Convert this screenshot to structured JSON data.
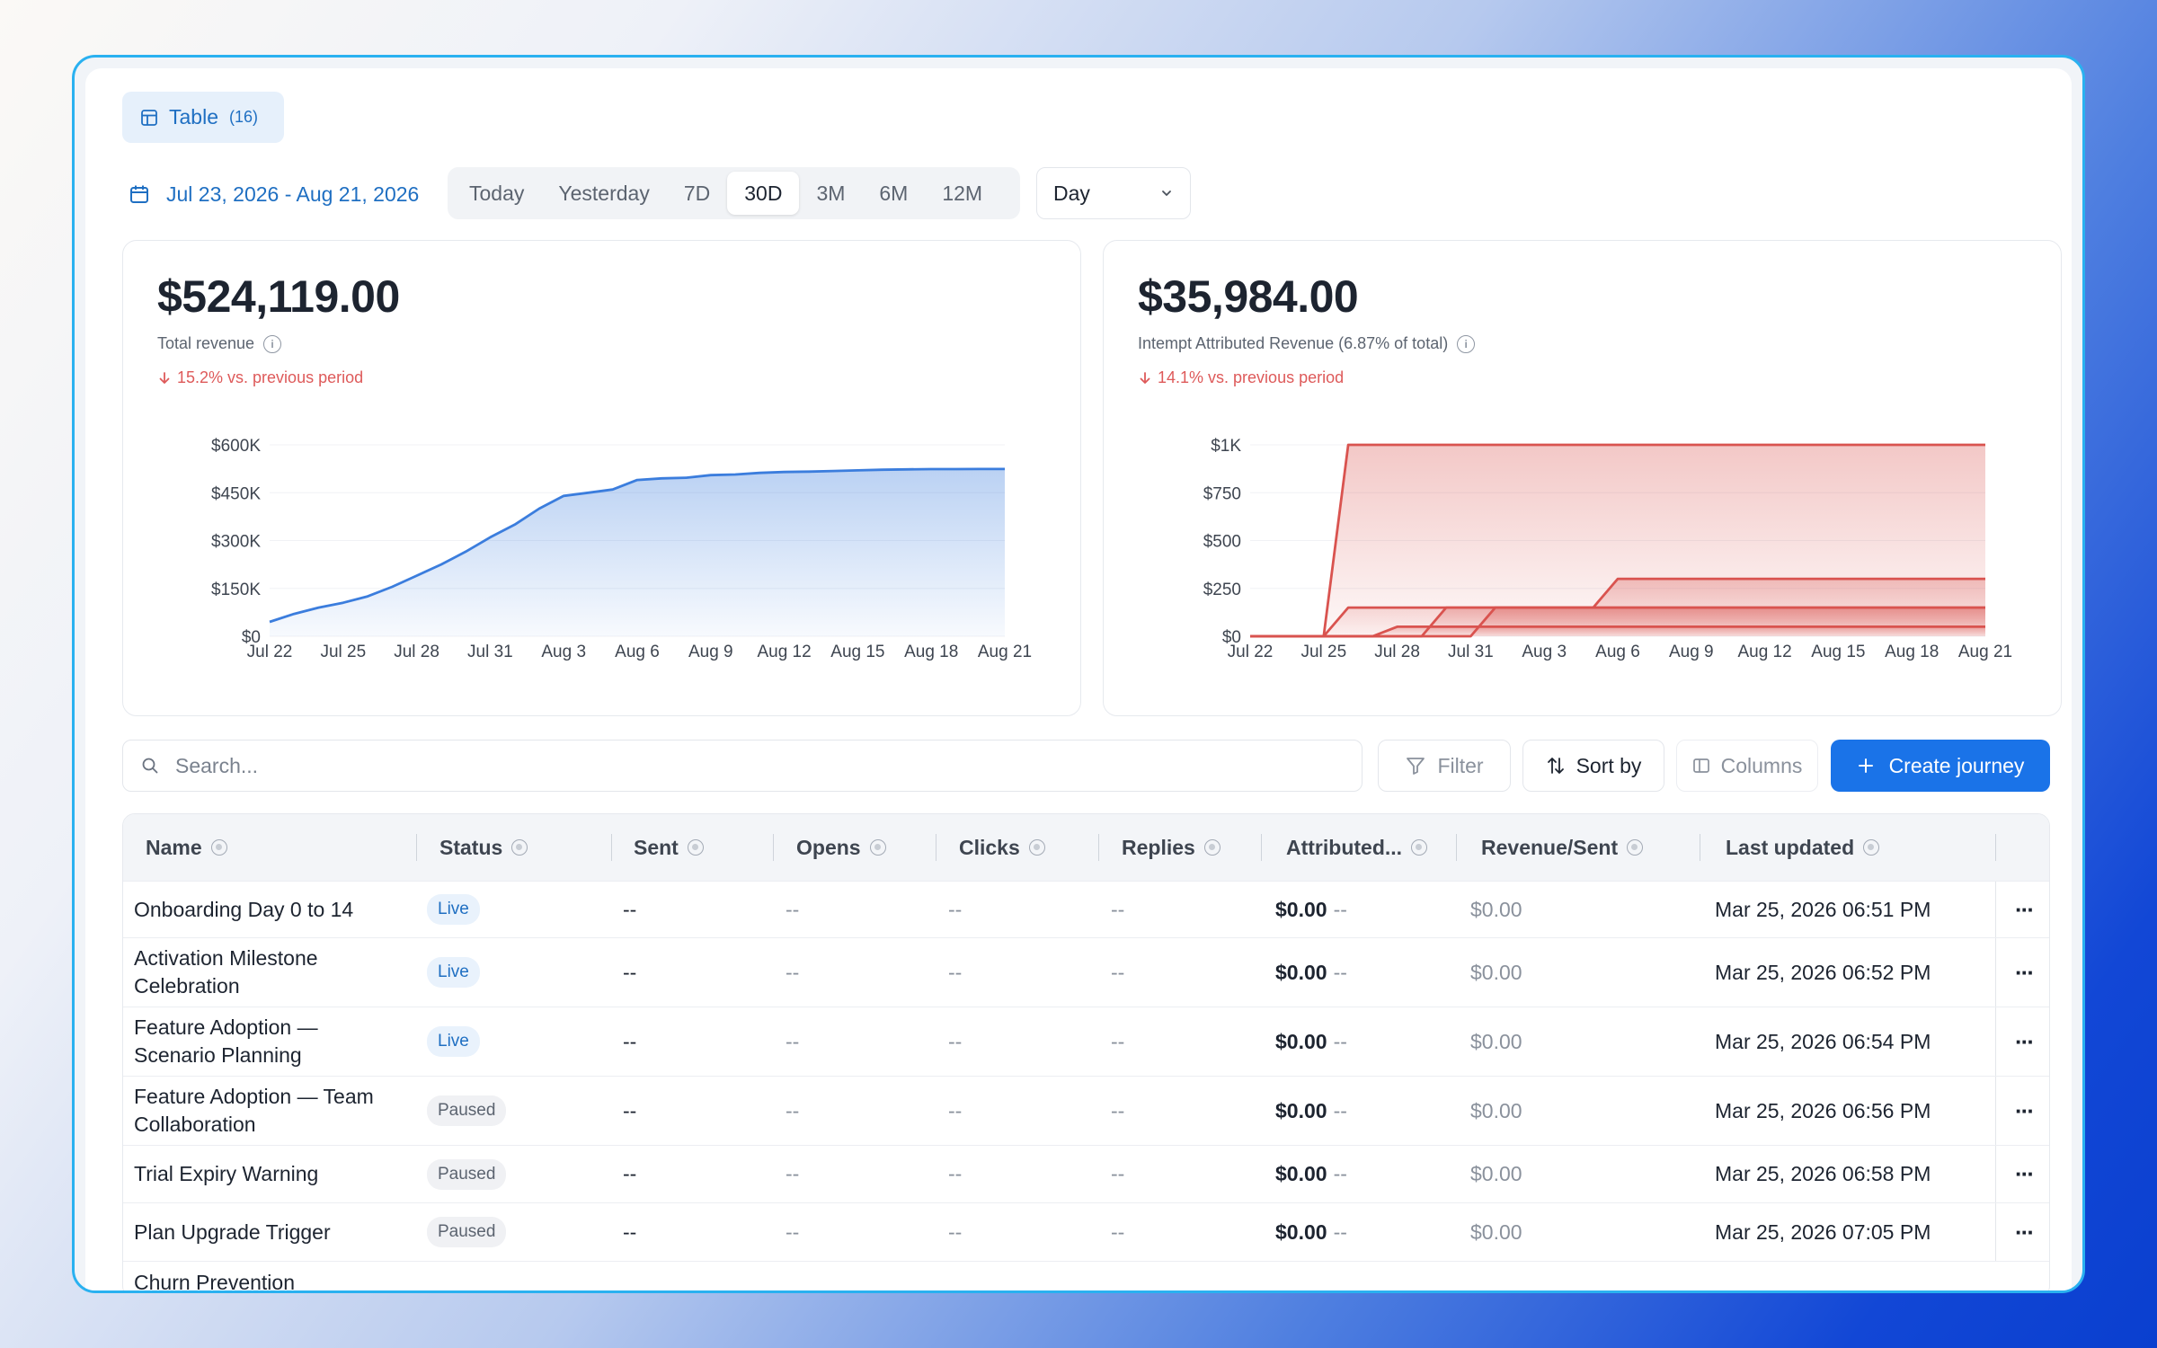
{
  "view_tab": {
    "label": "Table",
    "count": "(16)"
  },
  "date_range": "Jul 23, 2026 - Aug 21, 2026",
  "periods": [
    "Today",
    "Yesterday",
    "7D",
    "30D",
    "3M",
    "6M",
    "12M"
  ],
  "active_period": "30D",
  "granularity": "Day",
  "cards": [
    {
      "value": "$524,119.00",
      "label": "Total revenue",
      "delta": "15.2% vs. previous period"
    },
    {
      "value": "$35,984.00",
      "label": "Intempt Attributed Revenue (6.87% of total)",
      "delta": "14.1% vs. previous period"
    }
  ],
  "chart_data": [
    {
      "type": "area",
      "y_ticks": [
        "$600K",
        "$450K",
        "$300K",
        "$150K",
        "$0"
      ],
      "x_ticks": [
        "Jul 22",
        "Jul 25",
        "Jul 28",
        "Jul 31",
        "Aug 3",
        "Aug 6",
        "Aug 9",
        "Aug 12",
        "Aug 15",
        "Aug 18",
        "Aug 21"
      ],
      "ylim": [
        0,
        600000
      ],
      "color": "#3b7ddd",
      "series": [
        {
          "x": [
            "Jul 22",
            "Jul 23",
            "Jul 24",
            "Jul 25",
            "Jul 26",
            "Jul 27",
            "Jul 28",
            "Jul 29",
            "Jul 30",
            "Jul 31",
            "Aug 1",
            "Aug 2",
            "Aug 3",
            "Aug 4",
            "Aug 5",
            "Aug 6",
            "Aug 7",
            "Aug 8",
            "Aug 9",
            "Aug 10",
            "Aug 11",
            "Aug 12",
            "Aug 13",
            "Aug 14",
            "Aug 15",
            "Aug 16",
            "Aug 17",
            "Aug 18",
            "Aug 19",
            "Aug 20",
            "Aug 21"
          ],
          "values": [
            45000,
            70000,
            90000,
            105000,
            125000,
            155000,
            190000,
            225000,
            265000,
            310000,
            350000,
            400000,
            440000,
            450000,
            460000,
            490000,
            495000,
            497000,
            505000,
            507000,
            512000,
            515000,
            516000,
            518000,
            520000,
            522000,
            523000,
            524000,
            524000,
            524100,
            524119
          ]
        }
      ]
    },
    {
      "type": "area",
      "y_ticks": [
        "$1K",
        "$750",
        "$500",
        "$250",
        "$0"
      ],
      "x_ticks": [
        "Jul 22",
        "Jul 25",
        "Jul 28",
        "Jul 31",
        "Aug 3",
        "Aug 6",
        "Aug 9",
        "Aug 12",
        "Aug 15",
        "Aug 18",
        "Aug 21"
      ],
      "ylim": [
        0,
        1000
      ],
      "color": "#d9534f",
      "series": [
        {
          "x": [
            "Jul 22",
            "Jul 25",
            "Jul 26",
            "Aug 21"
          ],
          "values": [
            0,
            0,
            1000,
            1000
          ]
        },
        {
          "x": [
            "Jul 22",
            "Jul 25",
            "Jul 26",
            "Aug 5",
            "Aug 6",
            "Aug 21"
          ],
          "values": [
            0,
            0,
            150,
            150,
            300,
            300
          ]
        },
        {
          "x": [
            "Jul 22",
            "Jul 29",
            "Jul 30",
            "Aug 21"
          ],
          "values": [
            0,
            0,
            150,
            150
          ]
        },
        {
          "x": [
            "Jul 22",
            "Jul 31",
            "Aug 1",
            "Aug 21"
          ],
          "values": [
            0,
            0,
            150,
            150
          ]
        },
        {
          "x": [
            "Jul 22",
            "Jul 27",
            "Jul 28",
            "Aug 21"
          ],
          "values": [
            0,
            0,
            50,
            50
          ]
        }
      ]
    }
  ],
  "search": {
    "placeholder": "Search..."
  },
  "toolbar": {
    "filter": "Filter",
    "sort": "Sort by",
    "columns": "Columns",
    "create": "Create journey"
  },
  "columns": [
    "Name",
    "Status",
    "Sent",
    "Opens",
    "Clicks",
    "Replies",
    "Attributed...",
    "Revenue/Sent",
    "Last updated"
  ],
  "rows": [
    {
      "name": "Onboarding Day 0 to 14",
      "status": "Live",
      "sent": "--",
      "opens": "--",
      "clicks": "--",
      "replies": "--",
      "attributed": "$0.00",
      "attributed_sub": "--",
      "rps": "$0.00",
      "updated": "Mar 25, 2026 06:51 PM"
    },
    {
      "name": "Activation Milestone Celebration",
      "status": "Live",
      "sent": "--",
      "opens": "--",
      "clicks": "--",
      "replies": "--",
      "attributed": "$0.00",
      "attributed_sub": "--",
      "rps": "$0.00",
      "updated": "Mar 25, 2026 06:52 PM"
    },
    {
      "name": "Feature Adoption — Scenario Planning",
      "status": "Live",
      "sent": "--",
      "opens": "--",
      "clicks": "--",
      "replies": "--",
      "attributed": "$0.00",
      "attributed_sub": "--",
      "rps": "$0.00",
      "updated": "Mar 25, 2026 06:54 PM"
    },
    {
      "name": "Feature Adoption — Team Collaboration",
      "status": "Paused",
      "sent": "--",
      "opens": "--",
      "clicks": "--",
      "replies": "--",
      "attributed": "$0.00",
      "attributed_sub": "--",
      "rps": "$0.00",
      "updated": "Mar 25, 2026 06:56 PM"
    },
    {
      "name": "Trial Expiry Warning",
      "status": "Paused",
      "sent": "--",
      "opens": "--",
      "clicks": "--",
      "replies": "--",
      "attributed": "$0.00",
      "attributed_sub": "--",
      "rps": "$0.00",
      "updated": "Mar 25, 2026 06:58 PM"
    },
    {
      "name": "Plan Upgrade Trigger",
      "status": "Paused",
      "sent": "--",
      "opens": "--",
      "clicks": "--",
      "replies": "--",
      "attributed": "$0.00",
      "attributed_sub": "--",
      "rps": "$0.00",
      "updated": "Mar 25, 2026 07:05 PM"
    },
    {
      "name": "Churn Prevention",
      "status": "",
      "sent": "",
      "opens": "",
      "clicks": "",
      "replies": "",
      "attributed": "",
      "attributed_sub": "",
      "rps": "",
      "updated": ""
    }
  ]
}
